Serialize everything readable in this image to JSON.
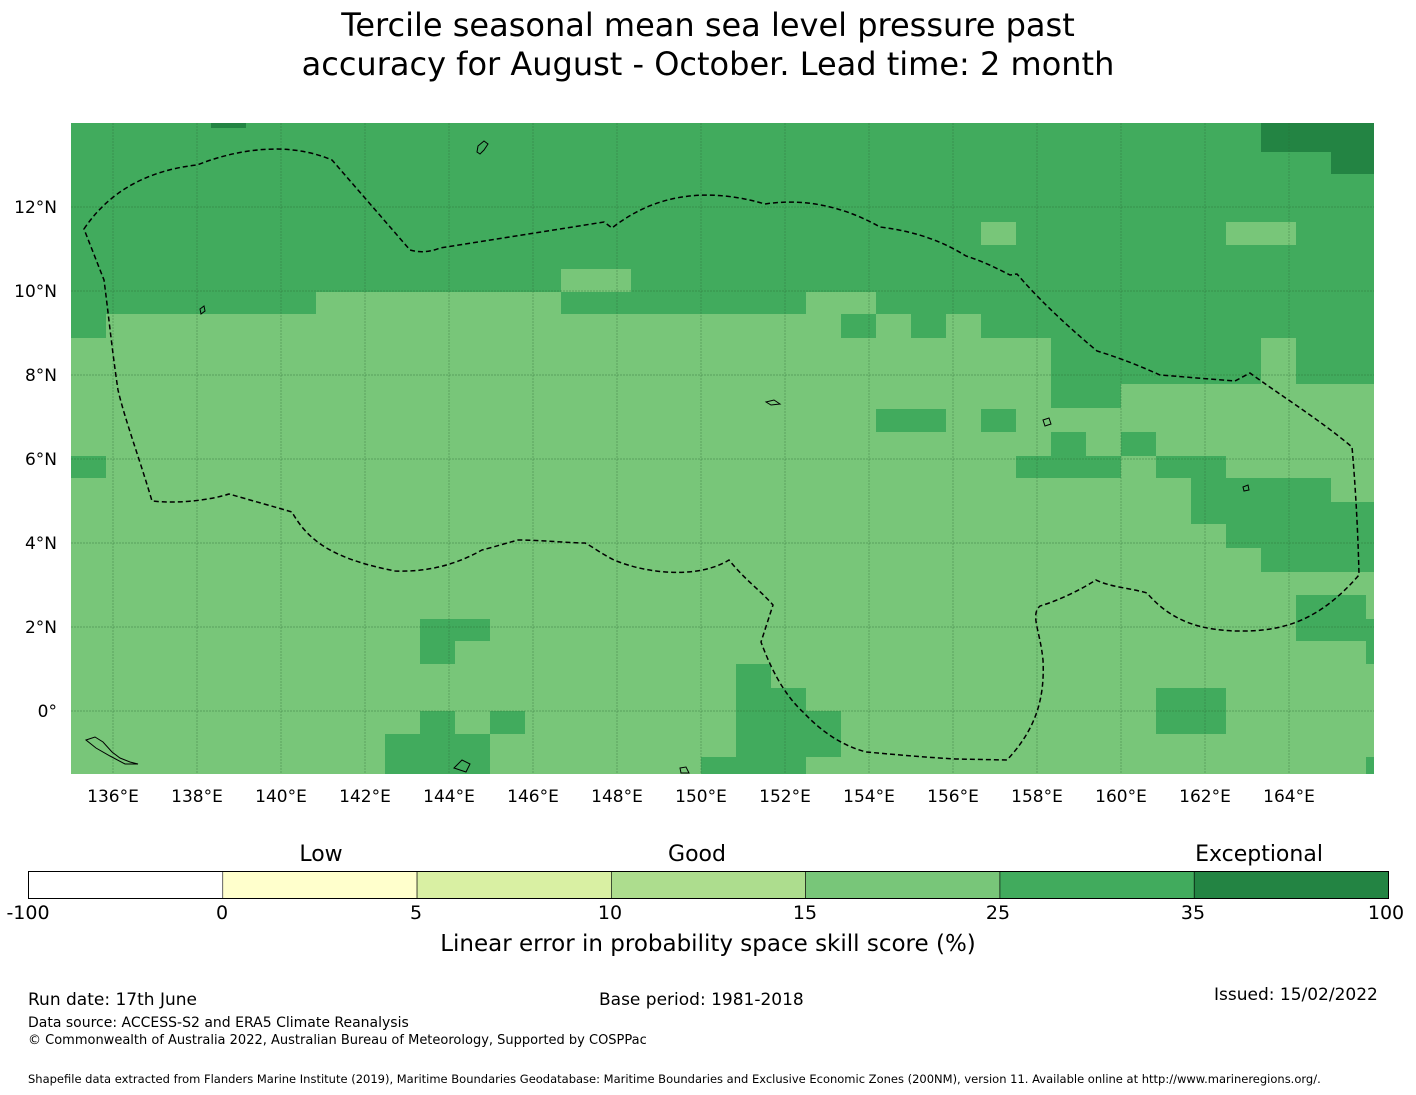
{
  "title": {
    "line1": "Tercile seasonal mean sea level pressure past",
    "line2": "accuracy for August - October. Lead time: 2 month"
  },
  "map": {
    "lon_range": [
      135,
      166
    ],
    "lat_range": [
      -1.5,
      14
    ],
    "lon_ticks": [
      "136°E",
      "138°E",
      "140°E",
      "142°E",
      "144°E",
      "146°E",
      "148°E",
      "150°E",
      "152°E",
      "154°E",
      "156°E",
      "158°E",
      "160°E",
      "162°E",
      "164°E"
    ],
    "lat_ticks": [
      "12°N",
      "10°N",
      "8°N",
      "6°N",
      "4°N",
      "2°N",
      "0°"
    ],
    "gridlines": true,
    "base_color": "#78c679",
    "eez_boundary_style": "dashed"
  },
  "colorbar": {
    "headings": {
      "low": "Low",
      "good": "Good",
      "exceptional": "Exceptional"
    },
    "ticks": [
      "-100",
      "0",
      "5",
      "10",
      "15",
      "25",
      "35",
      "100"
    ],
    "colors": [
      "#ffffff",
      "#ffffcc",
      "#d9f0a3",
      "#addd8e",
      "#78c679",
      "#41ab5d",
      "#238443"
    ],
    "label": "Linear error in probability space skill score (%)"
  },
  "footer": {
    "run_date": "Run date: 17th June",
    "base_period": "Base period: 1981-2018",
    "issued": "Issued: 15/02/2022",
    "data_source": "Data source: ACCESS-S2 and ERA5 Climate Reanalysis",
    "copyright": "© Commonwealth of Australia 2022, Australian Bureau of Meteorology, Supported by COSPPac",
    "shapefile": "Shapefile data extracted from Flanders Marine Institute (2019), Maritime Boundaries Geodatabase: Maritime Boundaries and Exclusive Economic Zones (200NM), version 11. Available online at http://www.marineregions.org/."
  }
}
